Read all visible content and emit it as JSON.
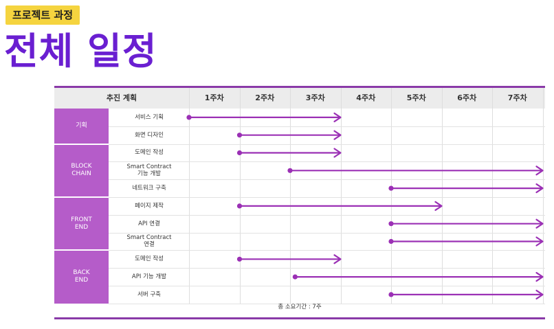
{
  "page": {
    "badge": "프로젝트 과정",
    "title": "전체 일정"
  },
  "colors": {
    "accent_title": "#6a1fd1",
    "badge_bg": "#f5d43f",
    "group_bg": "#b55cc9",
    "arrow": "#9b30b5",
    "frame_line": "#8a3aa8"
  },
  "table": {
    "header": {
      "plan_label": "추진 계획",
      "weeks": [
        "1주차",
        "2주차",
        "3주차",
        "4주차",
        "5주차",
        "6주차",
        "7주차"
      ]
    },
    "groups": [
      {
        "label": "기획",
        "rows": 2
      },
      {
        "label": "BLOCK\nCHAIN",
        "rows": 3
      },
      {
        "label": "FRONT\nEND",
        "rows": 3
      },
      {
        "label": "BACK\nEND",
        "rows": 3
      }
    ],
    "tasks": [
      {
        "name": "서비스 기획",
        "start": 1,
        "end": 4
      },
      {
        "name": "화면 디자인",
        "start": 2,
        "end": 4
      },
      {
        "name": "도메인 작성",
        "start": 2,
        "end": 4
      },
      {
        "name": "Smart Contract\n기능 개발",
        "start": 3,
        "end": 8
      },
      {
        "name": "네트워크 구축",
        "start": 5,
        "end": 8
      },
      {
        "name": "페이지 제작",
        "start": 2,
        "end": 6
      },
      {
        "name": "API 연결",
        "start": 5,
        "end": 8
      },
      {
        "name": "Smart Contract\n연결",
        "start": 5,
        "end": 8
      },
      {
        "name": "도메인 작성",
        "start": 2,
        "end": 4
      },
      {
        "name": "API 기능 개발",
        "start": 3.1,
        "end": 8
      },
      {
        "name": "서버 구축",
        "start": 5,
        "end": 8
      }
    ],
    "footer": "총 소요기간 : 7주"
  }
}
